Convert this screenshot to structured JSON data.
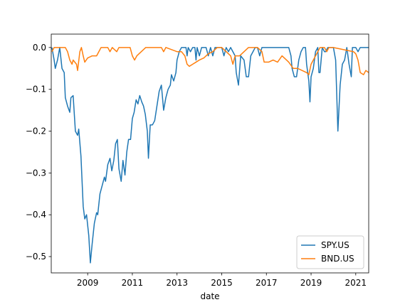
{
  "chart_data": {
    "type": "line",
    "x_label": "date",
    "xlim": [
      2007.37,
      2021.58
    ],
    "xticks": [
      2009,
      2011,
      2013,
      2015,
      2017,
      2019,
      2021
    ],
    "ylim": [
      -0.539,
      0.032
    ],
    "yticks": [
      {
        "value": 0,
        "label": "0.0"
      },
      {
        "value": -0.1,
        "label": "−0.1"
      },
      {
        "value": -0.2,
        "label": "−0.2"
      },
      {
        "value": -0.3,
        "label": "−0.3"
      },
      {
        "value": -0.4,
        "label": "−0.4"
      },
      {
        "value": -0.5,
        "label": "−0.5"
      }
    ],
    "legend": "lower right",
    "series": [
      {
        "name": "SPY.US",
        "color": "#1f77b4",
        "x": [
          2007.4,
          2007.5,
          2007.55,
          2007.65,
          2007.75,
          2007.85,
          2007.95,
          2008.0,
          2008.1,
          2008.2,
          2008.25,
          2008.35,
          2008.45,
          2008.55,
          2008.6,
          2008.7,
          2008.8,
          2008.87,
          2008.95,
          2009.05,
          2009.12,
          2009.2,
          2009.3,
          2009.4,
          2009.45,
          2009.55,
          2009.65,
          2009.75,
          2009.8,
          2009.9,
          2010.0,
          2010.08,
          2010.17,
          2010.25,
          2010.33,
          2010.4,
          2010.5,
          2010.58,
          2010.67,
          2010.75,
          2010.83,
          2010.92,
          2011.0,
          2011.08,
          2011.17,
          2011.25,
          2011.33,
          2011.42,
          2011.5,
          2011.58,
          2011.67,
          2011.72,
          2011.8,
          2011.9,
          2012.0,
          2012.1,
          2012.2,
          2012.3,
          2012.4,
          2012.5,
          2012.6,
          2012.7,
          2012.75,
          2012.85,
          2012.95,
          2013.0,
          2013.1,
          2013.2,
          2013.4,
          2013.45,
          2013.5,
          2013.6,
          2013.7,
          2013.8,
          2013.85,
          2013.9,
          2014.0,
          2014.1,
          2014.3,
          2014.4,
          2014.5,
          2014.6,
          2014.7,
          2015.0,
          2015.1,
          2015.2,
          2015.3,
          2015.4,
          2015.5,
          2015.6,
          2015.65,
          2015.75,
          2015.85,
          2016.0,
          2016.1,
          2016.2,
          2016.3,
          2016.4,
          2016.5,
          2016.6,
          2016.7,
          2016.8,
          2017.0,
          2018.0,
          2018.1,
          2018.15,
          2018.25,
          2018.35,
          2018.45,
          2018.55,
          2018.65,
          2018.75,
          2018.8,
          2018.9,
          2018.95,
          2019.0,
          2019.1,
          2019.2,
          2019.3,
          2019.35,
          2019.4,
          2019.5,
          2019.6,
          2019.65,
          2019.75,
          2020.0,
          2020.1,
          2020.2,
          2020.3,
          2020.4,
          2020.5,
          2020.6,
          2020.7,
          2020.8,
          2020.85,
          2021.0,
          2021.1,
          2021.2,
          2021.58
        ],
        "values": [
          0,
          -0.03,
          -0.05,
          -0.03,
          0,
          -0.05,
          -0.06,
          -0.12,
          -0.14,
          -0.155,
          -0.12,
          -0.115,
          -0.2,
          -0.21,
          -0.195,
          -0.26,
          -0.38,
          -0.41,
          -0.4,
          -0.45,
          -0.515,
          -0.47,
          -0.42,
          -0.395,
          -0.4,
          -0.35,
          -0.33,
          -0.31,
          -0.32,
          -0.28,
          -0.265,
          -0.295,
          -0.27,
          -0.23,
          -0.22,
          -0.29,
          -0.32,
          -0.27,
          -0.305,
          -0.25,
          -0.22,
          -0.22,
          -0.17,
          -0.155,
          -0.125,
          -0.135,
          -0.115,
          -0.13,
          -0.14,
          -0.16,
          -0.2,
          -0.265,
          -0.185,
          -0.185,
          -0.175,
          -0.14,
          -0.105,
          -0.09,
          -0.15,
          -0.12,
          -0.1,
          -0.09,
          -0.065,
          -0.08,
          -0.06,
          -0.03,
          -0.01,
          0,
          0,
          -0.02,
          0,
          -0.01,
          0,
          0,
          -0.03,
          0,
          -0.02,
          0,
          0,
          -0.02,
          0,
          -0.02,
          0,
          0,
          -0.02,
          0,
          -0.01,
          0,
          -0.01,
          -0.02,
          -0.06,
          -0.09,
          -0.02,
          -0.03,
          -0.07,
          -0.07,
          -0.02,
          -0.01,
          0,
          0,
          -0.02,
          0,
          0,
          0,
          -0.02,
          -0.05,
          -0.07,
          -0.07,
          -0.03,
          -0.01,
          0,
          0,
          -0.04,
          -0.08,
          -0.13,
          -0.07,
          -0.05,
          -0.01,
          0,
          -0.06,
          -0.06,
          0,
          -0.01,
          -0.01,
          0,
          0,
          -0.03,
          -0.2,
          -0.09,
          -0.04,
          -0.03,
          0,
          -0.04,
          -0.07,
          0,
          0,
          -0.01,
          0,
          0
        ]
      },
      {
        "name": "BND.US",
        "color": "#ff7f0e",
        "x": [
          2007.4,
          2007.5,
          2008.0,
          2008.1,
          2008.2,
          2008.3,
          2008.35,
          2008.5,
          2008.55,
          2008.65,
          2008.72,
          2008.8,
          2008.87,
          2009.0,
          2009.2,
          2009.4,
          2009.5,
          2009.6,
          2009.9,
          2010.0,
          2010.1,
          2010.3,
          2010.4,
          2010.9,
          2011.0,
          2011.1,
          2011.2,
          2011.4,
          2011.6,
          2012.3,
          2012.4,
          2012.5,
          2013.0,
          2013.2,
          2013.35,
          2013.45,
          2013.55,
          2013.7,
          2013.85,
          2014.0,
          2014.2,
          2014.4,
          2014.6,
          2014.8,
          2015.0,
          2015.2,
          2015.4,
          2015.5,
          2015.6,
          2015.8,
          2016.0,
          2016.2,
          2016.6,
          2016.8,
          2016.9,
          2017.1,
          2017.3,
          2017.5,
          2017.7,
          2017.9,
          2018.0,
          2018.2,
          2018.4,
          2018.6,
          2018.8,
          2018.9,
          2019.0,
          2019.2,
          2019.4,
          2019.6,
          2019.7,
          2019.8,
          2020.0,
          2020.9,
          2021.0,
          2021.1,
          2021.2,
          2021.35,
          2021.45,
          2021.58
        ],
        "values": [
          -0.01,
          0,
          0,
          -0.01,
          -0.03,
          -0.04,
          -0.03,
          -0.04,
          -0.055,
          -0.01,
          0,
          -0.02,
          -0.035,
          -0.025,
          -0.02,
          -0.02,
          -0.01,
          0,
          0,
          -0.01,
          0,
          -0.01,
          0,
          0,
          -0.02,
          -0.03,
          -0.02,
          -0.01,
          0,
          0,
          -0.01,
          0,
          -0.01,
          -0.01,
          -0.02,
          -0.04,
          -0.045,
          -0.04,
          -0.035,
          -0.03,
          -0.025,
          -0.015,
          -0.01,
          0,
          0,
          -0.01,
          -0.02,
          -0.04,
          -0.02,
          -0.02,
          -0.01,
          0,
          0,
          -0.01,
          -0.035,
          -0.035,
          -0.03,
          -0.035,
          -0.02,
          -0.03,
          -0.035,
          -0.05,
          -0.05,
          -0.055,
          -0.06,
          -0.065,
          -0.04,
          -0.02,
          0,
          0,
          -0.01,
          0,
          0,
          -0.01,
          -0.015,
          -0.03,
          -0.06,
          -0.065,
          -0.055,
          -0.06
        ]
      }
    ]
  }
}
